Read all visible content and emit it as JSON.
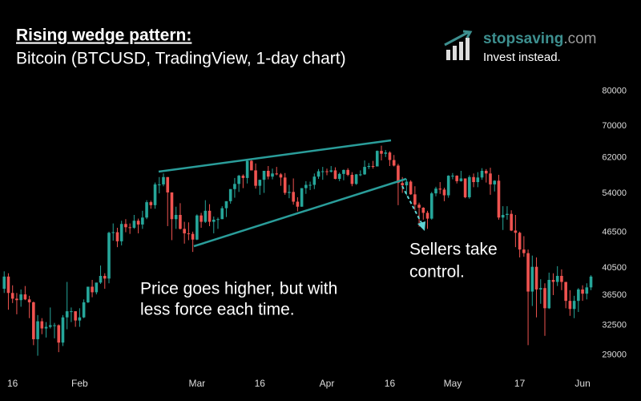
{
  "chart_data": {
    "type": "candlestick",
    "title": "Rising wedge pattern:",
    "subtitle": "Bitcoin (BTCUSD, TradingView, 1-day chart)",
    "annotations": [
      "Price goes higher, but with",
      "less force each time.",
      "Sellers take",
      "control."
    ],
    "log_y": true,
    "up_color": "#26a69a",
    "down_color": "#ef5350",
    "ylim": [
      27300,
      113700
    ],
    "yticks": [
      29000,
      32500,
      36500,
      40500,
      46500,
      54000,
      62000,
      70000,
      80000
    ],
    "xlim": [
      "01-13",
      "06-05"
    ],
    "xticks": [
      {
        "value": "01-16",
        "label": "16"
      },
      {
        "value": "02-01",
        "label": "Feb"
      },
      {
        "value": "03-01",
        "label": "Mar"
      },
      {
        "value": "03-16",
        "label": "16"
      },
      {
        "value": "04-01",
        "label": "Apr"
      },
      {
        "value": "04-16",
        "label": "16"
      },
      {
        "value": "05-01",
        "label": "May"
      },
      {
        "value": "05-17",
        "label": "17"
      },
      {
        "value": "06-01",
        "label": "Jun"
      }
    ],
    "x": [
      "01-14",
      "01-15",
      "01-16",
      "01-17",
      "01-18",
      "01-19",
      "01-20",
      "01-21",
      "01-22",
      "01-23",
      "01-24",
      "01-25",
      "01-26",
      "01-27",
      "01-28",
      "01-29",
      "01-30",
      "01-31",
      "02-01",
      "02-02",
      "02-03",
      "02-04",
      "02-05",
      "02-06",
      "02-07",
      "02-08",
      "02-09",
      "02-10",
      "02-11",
      "02-12",
      "02-13",
      "02-14",
      "02-15",
      "02-16",
      "02-17",
      "02-18",
      "02-19",
      "02-20",
      "02-21",
      "02-22",
      "02-23",
      "02-24",
      "02-25",
      "02-26",
      "02-27",
      "02-28",
      "03-01",
      "03-02",
      "03-03",
      "03-04",
      "03-05",
      "03-06",
      "03-07",
      "03-08",
      "03-09",
      "03-10",
      "03-11",
      "03-12",
      "03-13",
      "03-14",
      "03-15",
      "03-16",
      "03-17",
      "03-18",
      "03-19",
      "03-20",
      "03-21",
      "03-22",
      "03-23",
      "03-24",
      "03-25",
      "03-26",
      "03-27",
      "03-28",
      "03-29",
      "03-30",
      "03-31",
      "04-01",
      "04-02",
      "04-03",
      "04-04",
      "04-05",
      "04-06",
      "04-07",
      "04-08",
      "04-09",
      "04-10",
      "04-11",
      "04-12",
      "04-13",
      "04-14",
      "04-15",
      "04-16",
      "04-17",
      "04-18",
      "04-19",
      "04-20",
      "04-21",
      "04-22",
      "04-23",
      "04-24",
      "04-25",
      "04-26",
      "04-27",
      "04-28",
      "04-29",
      "04-30",
      "05-01",
      "05-02",
      "05-03",
      "05-04",
      "05-05",
      "05-06",
      "05-07",
      "05-08",
      "05-09",
      "05-10",
      "05-11",
      "05-12",
      "05-13",
      "05-14",
      "05-15",
      "05-16",
      "05-17",
      "05-18",
      "05-19",
      "05-20",
      "05-21",
      "05-22",
      "05-23",
      "05-24",
      "05-25",
      "05-26",
      "05-27",
      "05-28",
      "05-29",
      "05-30",
      "05-31",
      "06-01",
      "06-02",
      "06-03"
    ],
    "open": [
      37400,
      39200,
      36800,
      36000,
      35800,
      36600,
      35900,
      35500,
      30800,
      33000,
      32100,
      32300,
      32500,
      32500,
      30400,
      33500,
      34300,
      34300,
      33100,
      33500,
      35500,
      37700,
      36900,
      38300,
      39300,
      38900,
      46400,
      46500,
      44900,
      48000,
      47400,
      47300,
      48600,
      47900,
      49200,
      52200,
      51600,
      55900,
      55900,
      57500,
      54200,
      48900,
      49700,
      47100,
      46300,
      46200,
      45200,
      49600,
      48400,
      50500,
      48400,
      48800,
      48900,
      51000,
      52400,
      54900,
      56000,
      57800,
      57300,
      61200,
      59000,
      55600,
      56900,
      58900,
      57600,
      58300,
      58100,
      57400,
      54100,
      54300,
      52300,
      51300,
      55100,
      55800,
      55800,
      57600,
      58800,
      58800,
      58700,
      59000,
      57100,
      58200,
      59100,
      58000,
      56000,
      58100,
      58100,
      59800,
      60000,
      59900,
      63600,
      62900,
      63200,
      61400,
      60100,
      56200,
      55700,
      56500,
      53800,
      51700,
      51100,
      50100,
      49000,
      54000,
      55000,
      54800,
      53600,
      57800,
      57800,
      56600,
      57200,
      53200,
      57500,
      56400,
      57400,
      58900,
      58300,
      55900,
      56700,
      49200,
      49700,
      49900,
      46800,
      46400,
      43500,
      42900,
      37000,
      40700,
      37300,
      37500,
      34700,
      38700,
      38400,
      39300,
      38400,
      35700,
      34600,
      35700,
      37300,
      36700,
      37600
    ],
    "high": [
      40000,
      39700,
      37900,
      36800,
      37300,
      37800,
      36400,
      35600,
      33800,
      33400,
      32900,
      34800,
      32800,
      32600,
      33800,
      38400,
      34800,
      34300,
      34700,
      35900,
      37700,
      38700,
      38300,
      40900,
      39700,
      46600,
      48100,
      47300,
      48600,
      48900,
      48100,
      49700,
      49000,
      50500,
      52600,
      52500,
      56300,
      57500,
      58300,
      57500,
      54200,
      51300,
      52000,
      48400,
      48300,
      46600,
      49800,
      50100,
      52600,
      51800,
      49400,
      49200,
      51400,
      52400,
      54900,
      57300,
      58000,
      58100,
      61700,
      61600,
      60600,
      56900,
      58900,
      60000,
      59400,
      59800,
      58400,
      58400,
      55800,
      57200,
      53200,
      55100,
      56600,
      56500,
      58300,
      59300,
      59800,
      59400,
      60000,
      59700,
      58500,
      59200,
      59500,
      58600,
      58200,
      59000,
      61300,
      60700,
      61200,
      63700,
      64900,
      63800,
      63500,
      62600,
      60500,
      57500,
      57100,
      56800,
      55500,
      52100,
      51200,
      50500,
      54300,
      55400,
      56400,
      55200,
      57900,
      58400,
      57900,
      58900,
      57200,
      57900,
      58300,
      58600,
      59500,
      59300,
      59600,
      56800,
      58000,
      51400,
      51400,
      50600,
      49700,
      46600,
      45800,
      43500,
      42500,
      42200,
      38800,
      38200,
      39800,
      39700,
      40800,
      40300,
      38400,
      37200,
      36400,
      37500,
      37900,
      38200,
      39400
    ],
    "low": [
      36800,
      34500,
      35400,
      33900,
      34900,
      35800,
      33400,
      30100,
      28900,
      31400,
      31000,
      32100,
      30900,
      29300,
      30000,
      32000,
      32900,
      32300,
      32300,
      33400,
      35400,
      36200,
      36600,
      38100,
      37400,
      38200,
      45000,
      43900,
      44200,
      46500,
      46200,
      47100,
      46300,
      47100,
      48900,
      50900,
      50900,
      54000,
      55500,
      47600,
      45100,
      47100,
      47000,
      44500,
      45100,
      43100,
      45100,
      47300,
      48200,
      47600,
      46300,
      47100,
      48900,
      49300,
      51900,
      53100,
      54300,
      55100,
      56100,
      59000,
      55000,
      53700,
      54100,
      57000,
      57000,
      57900,
      55600,
      53700,
      53000,
      51700,
      50400,
      51300,
      53900,
      54700,
      54900,
      57100,
      56900,
      57900,
      58500,
      57000,
      56600,
      56800,
      57700,
      55500,
      55800,
      57700,
      58000,
      59300,
      59400,
      59900,
      61300,
      62100,
      60000,
      59900,
      51600,
      54100,
      53600,
      53700,
      50600,
      47500,
      48800,
      47100,
      48800,
      53400,
      53900,
      52400,
      53100,
      57000,
      56100,
      56500,
      53000,
      52900,
      55300,
      55300,
      56900,
      56300,
      53700,
      54400,
      48800,
      46900,
      48800,
      46700,
      43900,
      42200,
      42300,
      30100,
      35000,
      33500,
      35300,
      31200,
      34600,
      36500,
      37800,
      37200,
      34700,
      33700,
      33400,
      34200,
      35700,
      35900,
      37200
    ],
    "close": [
      39200,
      36800,
      36000,
      35800,
      36600,
      35900,
      35500,
      30800,
      33000,
      32100,
      32300,
      32500,
      32500,
      30400,
      33500,
      34300,
      34300,
      33100,
      33500,
      35500,
      37700,
      36900,
      38300,
      39300,
      38900,
      46400,
      46500,
      44900,
      48000,
      47400,
      47300,
      48600,
      47900,
      49200,
      52200,
      51600,
      55900,
      55900,
      57500,
      54200,
      48900,
      49700,
      47100,
      46300,
      46200,
      45200,
      49600,
      48400,
      50500,
      48400,
      48800,
      48900,
      51000,
      52400,
      54900,
      56000,
      57800,
      57300,
      61200,
      59000,
      55600,
      56900,
      58900,
      57600,
      58300,
      58100,
      57400,
      54100,
      54300,
      52300,
      51300,
      55100,
      55800,
      55800,
      57600,
      58800,
      58800,
      58700,
      59000,
      57100,
      58200,
      59100,
      58000,
      56000,
      58100,
      58100,
      59800,
      60000,
      59900,
      63600,
      62900,
      63200,
      61400,
      60100,
      56200,
      55700,
      56500,
      53800,
      51700,
      51100,
      50100,
      49000,
      54000,
      55000,
      54800,
      53600,
      57800,
      57800,
      56600,
      57200,
      53200,
      57500,
      56400,
      57400,
      58900,
      58300,
      55900,
      56700,
      49200,
      49700,
      49900,
      46800,
      46400,
      43500,
      42900,
      37000,
      40700,
      37300,
      37500,
      34700,
      38700,
      38400,
      39300,
      38400,
      35700,
      34600,
      35700,
      37300,
      36700,
      37600,
      39200
    ]
  },
  "logo": {
    "brand": "stopsaving",
    "suffix": ".com",
    "tagline": "Invest instead."
  }
}
